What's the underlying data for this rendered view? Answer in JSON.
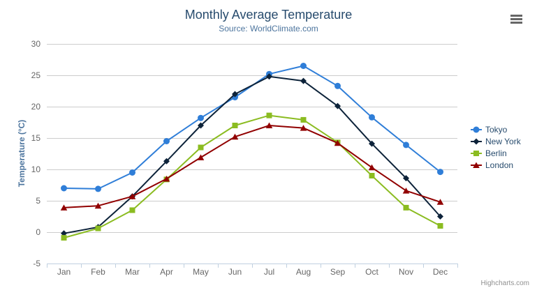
{
  "chart": {
    "title": "Monthly Average Temperature",
    "subtitle": "Source: WorldClimate.com",
    "y_axis_title": "Temperature (°C)",
    "credits": "Highcharts.com",
    "export_icon": "hamburger-menu"
  },
  "colors": {
    "title": "#274b6d",
    "subtitle": "#4d759e",
    "axis_title": "#4d759e",
    "axis_labels": "#666666",
    "grid_line": "#cccccc",
    "axis_line": "#c0d0e0",
    "tick": "#c0d0e0",
    "legend_text": "#274b6d",
    "credits": "#909090",
    "export_icon": "#666666",
    "background": "#ffffff"
  },
  "chart_data": {
    "type": "line",
    "title": "Monthly Average Temperature",
    "subtitle": "Source: WorldClimate.com",
    "xlabel": "",
    "ylabel": "Temperature (°C)",
    "ylim": [
      -5,
      30
    ],
    "yticks": [
      -5,
      0,
      5,
      10,
      15,
      20,
      25,
      30
    ],
    "grid": true,
    "legend_position": "right",
    "categories": [
      "Jan",
      "Feb",
      "Mar",
      "Apr",
      "May",
      "Jun",
      "Jul",
      "Aug",
      "Sep",
      "Oct",
      "Nov",
      "Dec"
    ],
    "series": [
      {
        "name": "Tokyo",
        "color": "#2f7ed8",
        "marker": "circle",
        "values": [
          7.0,
          6.9,
          9.5,
          14.5,
          18.2,
          21.5,
          25.2,
          26.5,
          23.3,
          18.3,
          13.9,
          9.6
        ]
      },
      {
        "name": "New York",
        "color": "#0d233a",
        "marker": "diamond",
        "values": [
          -0.2,
          0.8,
          5.7,
          11.3,
          17.0,
          22.0,
          24.8,
          24.1,
          20.1,
          14.1,
          8.6,
          2.5
        ]
      },
      {
        "name": "Berlin",
        "color": "#8bbc21",
        "marker": "square",
        "values": [
          -0.9,
          0.6,
          3.5,
          8.4,
          13.5,
          17.0,
          18.6,
          17.9,
          14.3,
          9.0,
          3.9,
          1.0
        ]
      },
      {
        "name": "London",
        "color": "#910000",
        "marker": "triangle",
        "values": [
          3.9,
          4.2,
          5.7,
          8.5,
          11.9,
          15.2,
          17.0,
          16.6,
          14.2,
          10.3,
          6.6,
          4.8
        ]
      }
    ]
  }
}
